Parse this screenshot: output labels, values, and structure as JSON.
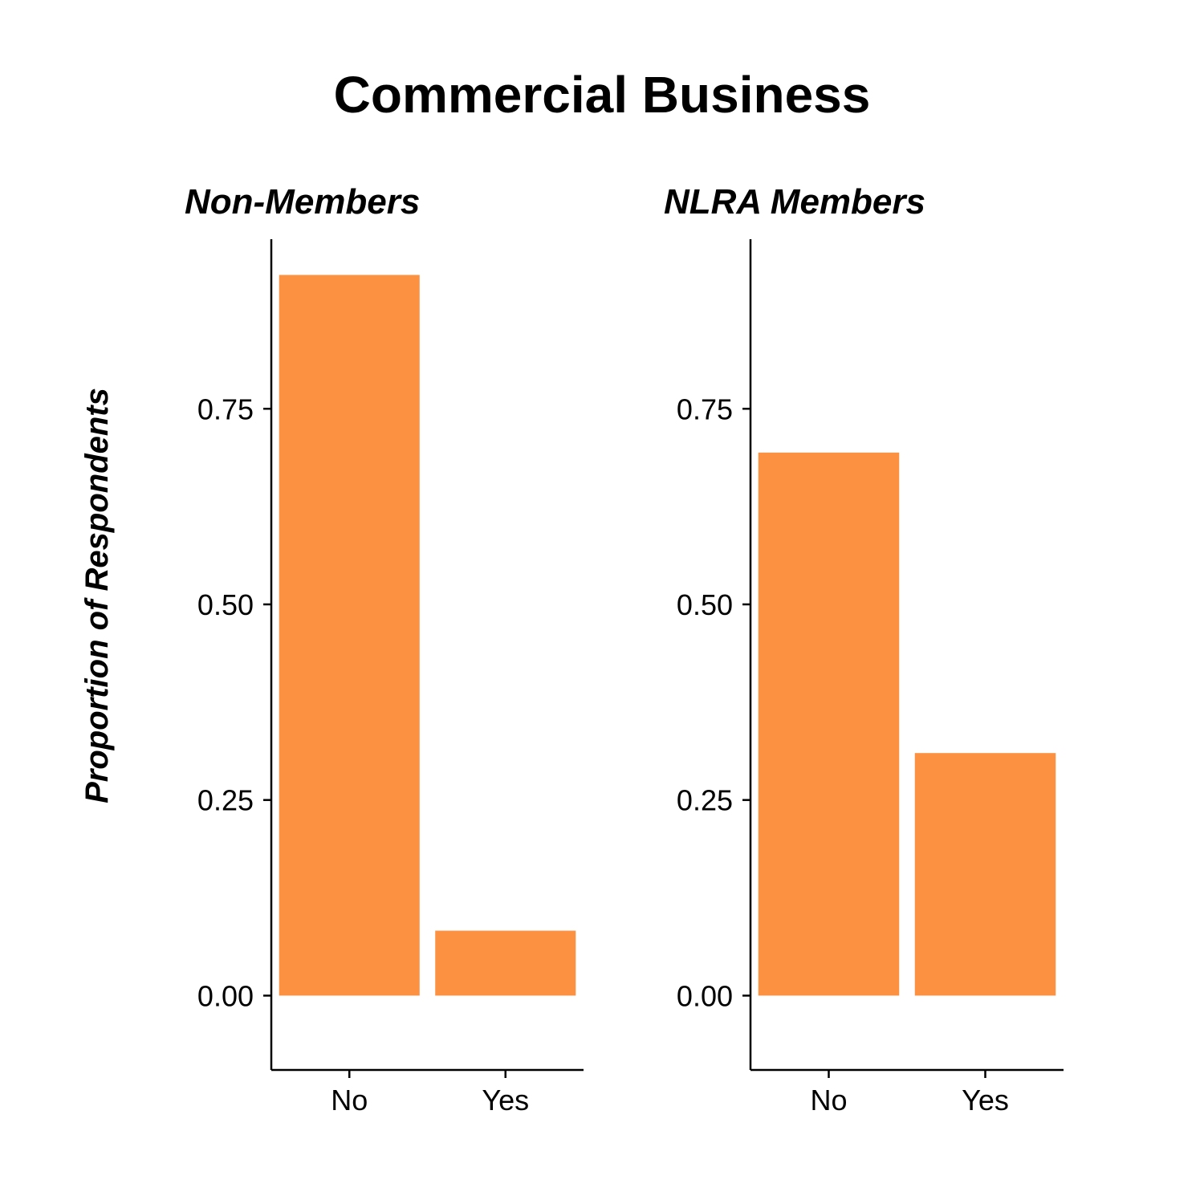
{
  "colors": {
    "bar": "#FB9141",
    "axis": "#000000"
  },
  "chart_data": {
    "type": "bar",
    "title": "Commercial Business",
    "ylabel": "Proportion of Respondents",
    "ylim": [
      -0.095,
      0.9667
    ],
    "yticks": [
      "0.00",
      "0.25",
      "0.50",
      "0.75"
    ],
    "ytick_values": [
      0,
      0.25,
      0.5,
      0.75
    ],
    "categories": [
      "No",
      "Yes"
    ],
    "grid": false,
    "panels": [
      {
        "name": "Non-Members",
        "values": [
          0.921,
          0.083
        ]
      },
      {
        "name": "NLRA Members",
        "values": [
          0.694,
          0.31
        ]
      }
    ]
  }
}
